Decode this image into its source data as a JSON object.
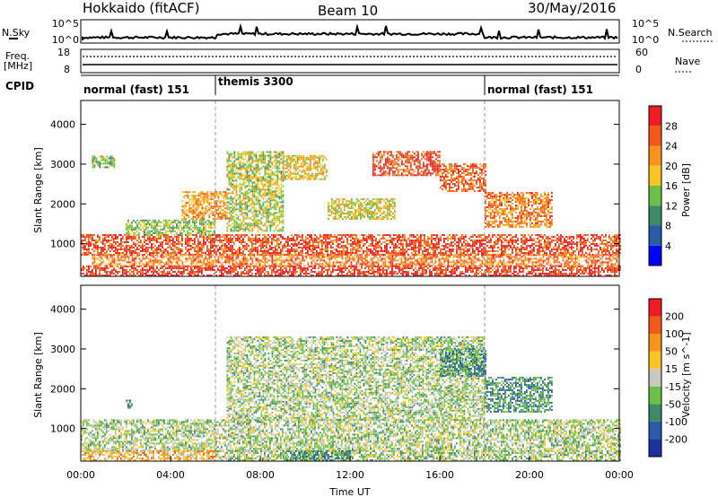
{
  "header": {
    "station": "Hokkaido (fitACF)",
    "beam": "Beam 10",
    "date": "30/May/2016"
  },
  "top_panels": {
    "nsky_label": "N.Sky",
    "nsky_ticks": [
      "10^5",
      "10^0"
    ],
    "nsearch_label": "N.Search",
    "nsearch_ticks": [
      "10^5",
      "10^0"
    ],
    "freq_label": "Freq.",
    "freq_unit": "[MHz]",
    "freq_ticks": [
      "18",
      "8"
    ],
    "nave_label": "Nave",
    "nave_ticks": [
      "60",
      "0"
    ],
    "cpid_label": "CPID"
  },
  "cpid_segments": [
    {
      "label": "normal (fast) 151",
      "start_h": 0,
      "end_h": 6
    },
    {
      "label": "themis 3300",
      "start_h": 6,
      "end_h": 18
    },
    {
      "label": "normal (fast) 151",
      "start_h": 18,
      "end_h": 24
    }
  ],
  "chart_data": [
    {
      "type": "heatmap",
      "name": "power",
      "ylabel": "Slant Range [km]",
      "ylim": [
        180,
        4600
      ],
      "yticks": [
        1000,
        2000,
        3000,
        4000
      ],
      "xlim": [
        0,
        24
      ],
      "colorbar_label": "Power [dB]",
      "colorbar_ticks": [
        "4",
        "8",
        "12",
        "16",
        "20",
        "24",
        "28"
      ],
      "colorbar_colors": [
        "#0000ff",
        "#2a5aa8",
        "#3d8a6a",
        "#6cc04a",
        "#f7c623",
        "#f7941d",
        "#f05a1a",
        "#ee1c25"
      ],
      "regions": [
        {
          "start_h": 0,
          "end_h": 24,
          "r_lo": 700,
          "r_hi": 1200,
          "v": 0.85
        },
        {
          "start_h": 0,
          "end_h": 24,
          "r_lo": 180,
          "r_hi": 420,
          "v": 0.9
        },
        {
          "start_h": 0.5,
          "end_h": 24,
          "r_lo": 420,
          "r_hi": 700,
          "v": 0.75
        },
        {
          "start_h": 2,
          "end_h": 6,
          "r_lo": 1200,
          "r_hi": 1600,
          "v": 0.45
        },
        {
          "start_h": 4.5,
          "end_h": 6.5,
          "r_lo": 1600,
          "r_hi": 2300,
          "v": 0.7
        },
        {
          "start_h": 6.5,
          "end_h": 9,
          "r_lo": 1300,
          "r_hi": 3300,
          "v": 0.5
        },
        {
          "start_h": 9,
          "end_h": 11,
          "r_lo": 2600,
          "r_hi": 3200,
          "v": 0.6
        },
        {
          "start_h": 13,
          "end_h": 16,
          "r_lo": 2700,
          "r_hi": 3300,
          "v": 0.85
        },
        {
          "start_h": 16,
          "end_h": 18,
          "r_lo": 2300,
          "r_hi": 3000,
          "v": 0.8
        },
        {
          "start_h": 18,
          "end_h": 21,
          "r_lo": 1400,
          "r_hi": 2300,
          "v": 0.75
        },
        {
          "start_h": 11,
          "end_h": 14,
          "r_lo": 1600,
          "r_hi": 2100,
          "v": 0.55
        },
        {
          "start_h": 0.5,
          "end_h": 1.5,
          "r_lo": 2900,
          "r_hi": 3200,
          "v": 0.4
        }
      ]
    },
    {
      "type": "heatmap",
      "name": "velocity",
      "ylabel": "Slant Range [km]",
      "ylim": [
        180,
        4600
      ],
      "yticks": [
        1000,
        2000,
        3000,
        4000
      ],
      "xlim": [
        0,
        24
      ],
      "xticks": [
        "00:00",
        "04:00",
        "08:00",
        "12:00",
        "16:00",
        "20:00",
        "00:00"
      ],
      "xlabel": "Time UT",
      "colorbar_label": "Velocity [m s^-1]",
      "colorbar_ticks": [
        "200",
        "100",
        "50",
        "15",
        "-15",
        "-50",
        "-100",
        "-200"
      ],
      "colorbar_colors": [
        "#1e2fa0",
        "#2a5aa8",
        "#3d8a6a",
        "#6cc04a",
        "#c8c8c0",
        "#f7c623",
        "#f7941d",
        "#f05a1a",
        "#ee1c25"
      ],
      "regions": [
        {
          "start_h": 0,
          "end_h": 24,
          "r_lo": 420,
          "r_hi": 1200,
          "v": 0.45
        },
        {
          "start_h": 0,
          "end_h": 6,
          "r_lo": 180,
          "r_hi": 420,
          "v": 0.65
        },
        {
          "start_h": 6,
          "end_h": 24,
          "r_lo": 180,
          "r_hi": 420,
          "v": 0.45
        },
        {
          "start_h": 6.5,
          "end_h": 18,
          "r_lo": 1200,
          "r_hi": 3300,
          "v": 0.45
        },
        {
          "start_h": 16,
          "end_h": 18,
          "r_lo": 2300,
          "r_hi": 3000,
          "v": 0.3
        },
        {
          "start_h": 18,
          "end_h": 21,
          "r_lo": 1400,
          "r_hi": 2300,
          "v": 0.3
        },
        {
          "start_h": 9,
          "end_h": 12,
          "r_lo": 180,
          "r_hi": 420,
          "v": 0.3
        },
        {
          "start_h": 2,
          "end_h": 2.3,
          "r_lo": 1500,
          "r_hi": 1700,
          "v": 0.3
        }
      ]
    }
  ]
}
